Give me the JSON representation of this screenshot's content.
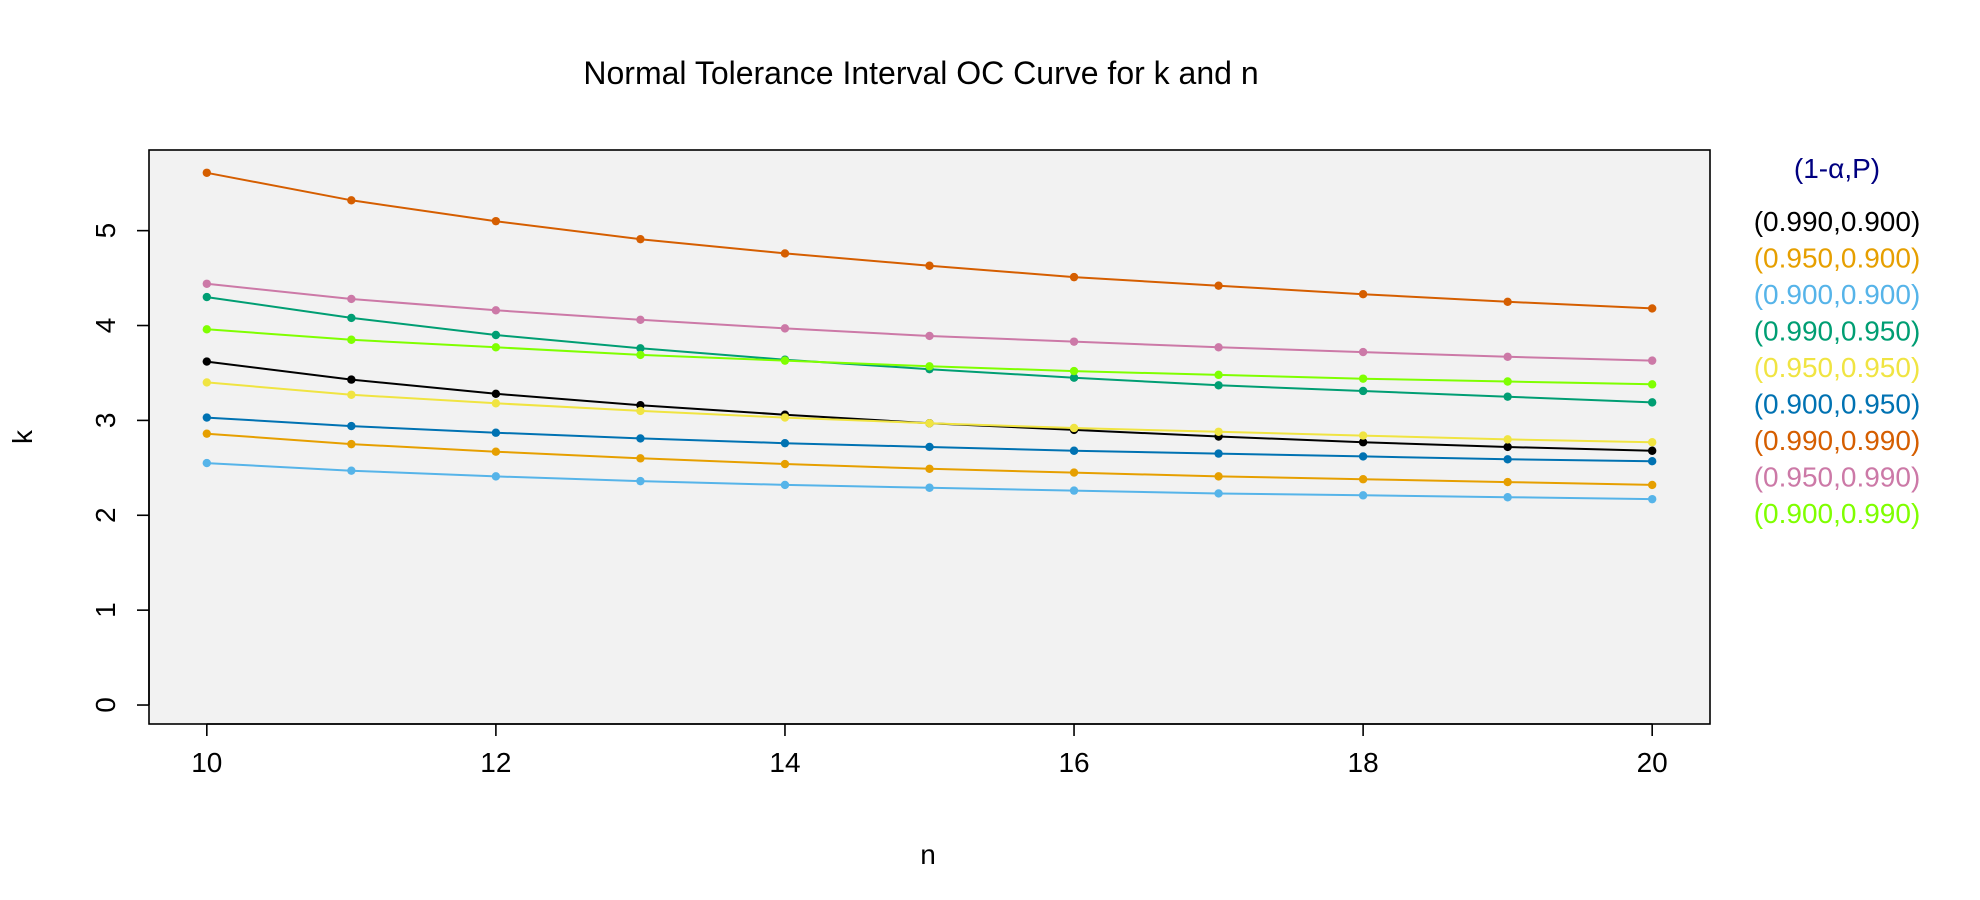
{
  "chart_data": {
    "type": "line",
    "title": "Normal Tolerance Interval OC Curve for k and n",
    "xlabel": "n",
    "ylabel": "k",
    "xlim": [
      9.6,
      20.4
    ],
    "ylim": [
      -0.2,
      5.85
    ],
    "x": [
      10,
      11,
      12,
      13,
      14,
      15,
      16,
      17,
      18,
      19,
      20
    ],
    "x_ticks": [
      10,
      12,
      14,
      16,
      18,
      20
    ],
    "y_ticks": [
      0,
      1,
      2,
      3,
      4,
      5
    ],
    "grid": false,
    "background": "#f2f2f2",
    "legend_title": "(1-α,P)",
    "legend_title_color": "#000080",
    "legend_position": "right",
    "series": [
      {
        "name": "(0.990,0.900)",
        "color": "#000000",
        "values": [
          3.62,
          3.43,
          3.28,
          3.16,
          3.06,
          2.97,
          2.9,
          2.83,
          2.77,
          2.72,
          2.68
        ]
      },
      {
        "name": "(0.950,0.900)",
        "color": "#E69F00",
        "values": [
          2.86,
          2.75,
          2.67,
          2.6,
          2.54,
          2.49,
          2.45,
          2.41,
          2.38,
          2.35,
          2.32
        ]
      },
      {
        "name": "(0.900,0.900)",
        "color": "#56B4E9",
        "values": [
          2.55,
          2.47,
          2.41,
          2.36,
          2.32,
          2.29,
          2.26,
          2.23,
          2.21,
          2.19,
          2.17
        ]
      },
      {
        "name": "(0.990,0.950)",
        "color": "#009E73",
        "values": [
          4.3,
          4.08,
          3.9,
          3.76,
          3.64,
          3.54,
          3.45,
          3.37,
          3.31,
          3.25,
          3.19
        ]
      },
      {
        "name": "(0.950,0.950)",
        "color": "#F0E442",
        "values": [
          3.4,
          3.27,
          3.18,
          3.1,
          3.03,
          2.97,
          2.92,
          2.88,
          2.84,
          2.8,
          2.77
        ]
      },
      {
        "name": "(0.900,0.950)",
        "color": "#0072B2",
        "values": [
          3.03,
          2.94,
          2.87,
          2.81,
          2.76,
          2.72,
          2.68,
          2.65,
          2.62,
          2.59,
          2.57
        ]
      },
      {
        "name": "(0.990,0.990)",
        "color": "#D55E00",
        "values": [
          5.61,
          5.32,
          5.1,
          4.91,
          4.76,
          4.63,
          4.51,
          4.42,
          4.33,
          4.25,
          4.18
        ]
      },
      {
        "name": "(0.950,0.990)",
        "color": "#CC79A7",
        "values": [
          4.44,
          4.28,
          4.16,
          4.06,
          3.97,
          3.89,
          3.83,
          3.77,
          3.72,
          3.67,
          3.63
        ]
      },
      {
        "name": "(0.900,0.990)",
        "color": "#7FFF00",
        "values": [
          3.96,
          3.85,
          3.77,
          3.69,
          3.63,
          3.57,
          3.52,
          3.48,
          3.44,
          3.41,
          3.38
        ]
      }
    ]
  }
}
